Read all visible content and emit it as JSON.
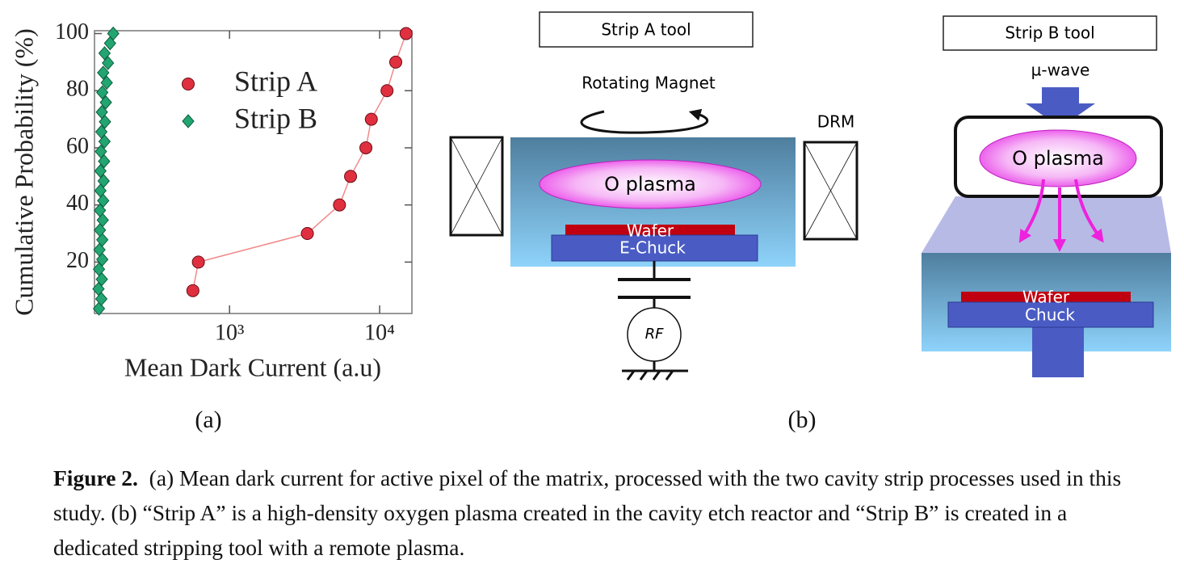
{
  "chart_data": {
    "type": "scatter",
    "x_label": "Mean Dark Current (a.u)",
    "y_label": "Cumulative Probability (%)",
    "xlog": true,
    "xlim": [
      126,
      16400
    ],
    "ylim": [
      2,
      101
    ],
    "xticks": [
      {
        "value": 1000,
        "label": "10³"
      },
      {
        "value": 10000,
        "label": "10⁴"
      }
    ],
    "yticks": [
      20,
      40,
      60,
      80,
      100
    ],
    "legend": "upper left",
    "series": [
      {
        "name": "Strip A",
        "color": "#e0303f",
        "marker": "circle",
        "line": true,
        "x": [
          570,
          620,
          3300,
          5400,
          6400,
          8100,
          8800,
          11200,
          12800,
          15000
        ],
        "values": [
          10,
          20,
          30,
          40,
          50,
          60,
          70,
          80,
          90,
          100
        ]
      },
      {
        "name": "Strip B",
        "color": "#23a571",
        "marker": "diamond",
        "line": false,
        "x": [
          135,
          140,
          134,
          141,
          135,
          142,
          136,
          142,
          137,
          143,
          137,
          144,
          138,
          145,
          138,
          146,
          139,
          147,
          140,
          148,
          141,
          150,
          142,
          152,
          144,
          155,
          147,
          160,
          168
        ],
        "values": [
          3.7,
          7.1,
          10.6,
          14.0,
          17.5,
          20.9,
          24.3,
          27.8,
          31.2,
          34.7,
          38.1,
          41.5,
          45.0,
          48.4,
          51.9,
          55.3,
          58.7,
          62.2,
          65.6,
          69.1,
          72.5,
          75.9,
          79.4,
          82.8,
          86.3,
          89.7,
          93.1,
          96.6,
          100
        ]
      }
    ]
  },
  "panels": {
    "a": "(a)",
    "b": "(b)"
  },
  "strip_a": {
    "title": "Strip A tool",
    "magnet": "Rotating Magnet",
    "drm": "DRM",
    "plasma": "O plasma",
    "wafer": "Wafer",
    "chuck": "E-Chuck",
    "rf": "RF"
  },
  "strip_b": {
    "title": "Strip B tool",
    "source": "µ-wave",
    "plasma": "O plasma",
    "wafer": "Wafer",
    "chuck": "Chuck"
  },
  "caption": {
    "label": "Figure 2.",
    "text": "(a) Mean dark current for active pixel of the matrix, processed with the two cavity strip processes used in this study. (b) “Strip A” is a high-density oxygen plasma created in the cavity etch reactor and “Strip B” is created in a dedicated stripping tool with a remote plasma."
  }
}
